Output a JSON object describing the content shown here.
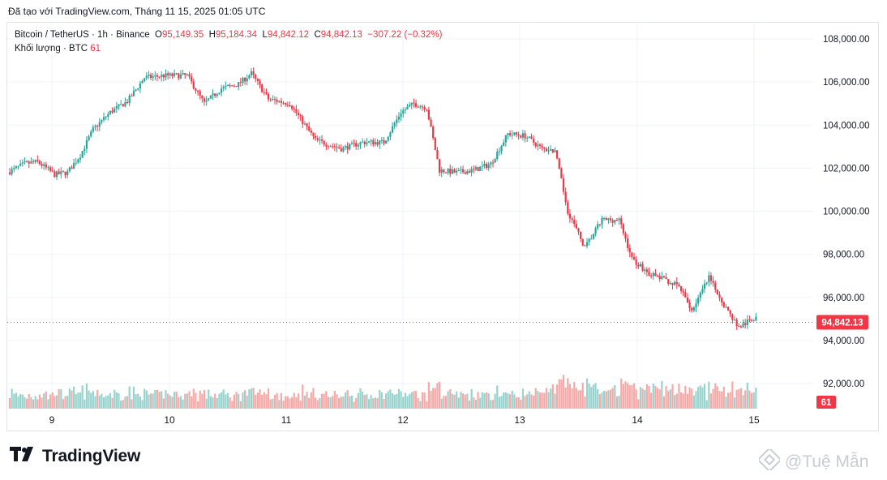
{
  "caption": "Đã tạo với TradingView.com, Tháng 11 15, 2025 01:05 UTC",
  "legend": {
    "symbol": "Bitcoin / TetherUS · 1h · Binance",
    "open_label": "O",
    "open": "95,149.35",
    "high_label": "H",
    "high": "95,184.34",
    "low_label": "L",
    "low": "94,842.12",
    "close_label": "C",
    "close": "94,842.13",
    "change": "−307.22 (−0.32%)",
    "volume_label": "Khối lượng · BTC",
    "volume_value": "61"
  },
  "brand": {
    "name": "TradingView",
    "logo": "tradingview-logo-icon"
  },
  "watermark": {
    "text": "@Tuệ Mẫn",
    "icon": "binance-diamond-icon"
  },
  "colors": {
    "up": "#26a69a",
    "down": "#f23645",
    "up_vol": "#98d3cd",
    "down_vol": "#f7a9a7",
    "grid": "#f0f3fa"
  },
  "chart_data": {
    "type": "candlestick",
    "title": "Bitcoin / TetherUS · 1h · Binance",
    "interval": "1h",
    "y_axis_side": "right",
    "ylim": [
      91000,
      108600
    ],
    "y_ticks": [
      "108,000.00",
      "106,000.00",
      "104,000.00",
      "102,000.00",
      "100,000.00",
      "98,000.00",
      "96,000.00",
      "94,000.00",
      "92,000.00"
    ],
    "x_ticks": [
      "9",
      "10",
      "11",
      "12",
      "13",
      "14",
      "15"
    ],
    "last_price": "94,842.13",
    "last_volume": "61",
    "grid": true,
    "price_keypoints": [
      [
        0,
        101800
      ],
      [
        8,
        102200
      ],
      [
        14,
        102300
      ],
      [
        22,
        101700
      ],
      [
        28,
        101800
      ],
      [
        34,
        102600
      ],
      [
        40,
        103800
      ],
      [
        48,
        104600
      ],
      [
        56,
        105100
      ],
      [
        64,
        106200
      ],
      [
        74,
        106300
      ],
      [
        84,
        106300
      ],
      [
        92,
        105000
      ],
      [
        100,
        105700
      ],
      [
        108,
        105900
      ],
      [
        114,
        106400
      ],
      [
        122,
        105200
      ],
      [
        132,
        105000
      ],
      [
        144,
        103300
      ],
      [
        156,
        102900
      ],
      [
        166,
        103200
      ],
      [
        176,
        103200
      ],
      [
        184,
        104600
      ],
      [
        190,
        105000
      ],
      [
        196,
        104800
      ],
      [
        202,
        101900
      ],
      [
        210,
        101800
      ],
      [
        218,
        101900
      ],
      [
        226,
        102200
      ],
      [
        234,
        103600
      ],
      [
        242,
        103500
      ],
      [
        250,
        102900
      ],
      [
        256,
        102800
      ],
      [
        262,
        100000
      ],
      [
        270,
        98300
      ],
      [
        278,
        99600
      ],
      [
        286,
        99600
      ],
      [
        292,
        97800
      ],
      [
        300,
        97100
      ],
      [
        308,
        96800
      ],
      [
        314,
        96500
      ],
      [
        320,
        95400
      ],
      [
        328,
        96900
      ],
      [
        336,
        95500
      ],
      [
        342,
        94600
      ],
      [
        350,
        95100
      ]
    ]
  }
}
